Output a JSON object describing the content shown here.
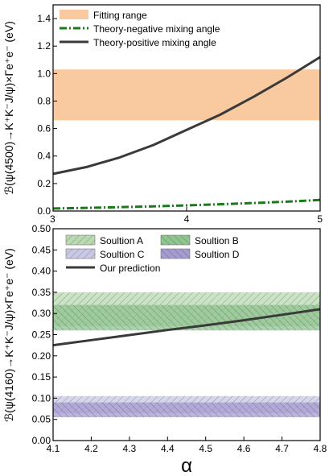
{
  "chart_data": [
    {
      "type": "line",
      "ylabel": "ℬ(ψ(4500)→K⁺K⁻J/ψ)×Γe⁺e⁻ (eV)",
      "xlim": [
        3,
        5
      ],
      "ylim": [
        0,
        1.5
      ],
      "xticks": [
        "3",
        "4",
        "5"
      ],
      "yticks": [
        "0.0",
        "0.2",
        "0.4",
        "0.6",
        "0.8",
        "1.0",
        "1.2",
        "1.4"
      ],
      "legend_position": "top-left",
      "bands": [
        {
          "name": "Fitting range",
          "low": 0.66,
          "high": 1.03,
          "color": "#f9c9a0"
        }
      ],
      "series": [
        {
          "name": "Theory-negative mixing angle",
          "color": "#1a7a1a",
          "style": "dashdot",
          "x": [
            3.0,
            3.25,
            3.5,
            3.75,
            4.0,
            4.25,
            4.5,
            4.75,
            5.0
          ],
          "y": [
            0.018,
            0.023,
            0.028,
            0.034,
            0.041,
            0.049,
            0.058,
            0.068,
            0.08
          ]
        },
        {
          "name": "Theory-positive  mixing angle",
          "color": "#3a3a3a",
          "style": "solid",
          "x": [
            3.0,
            3.25,
            3.5,
            3.75,
            4.0,
            4.25,
            4.5,
            4.75,
            5.0
          ],
          "y": [
            0.27,
            0.32,
            0.39,
            0.48,
            0.59,
            0.7,
            0.83,
            0.97,
            1.12
          ]
        }
      ]
    },
    {
      "type": "line",
      "xlabel": "α",
      "ylabel": "ℬ(ψ(4160)→K⁺K⁻J/ψ)×Γe⁺e⁻ (eV)",
      "xlim": [
        4.1,
        4.8
      ],
      "ylim": [
        0,
        0.5
      ],
      "xticks": [
        "4.1",
        "4.2",
        "4.3",
        "4.4",
        "4.5",
        "4.6",
        "4.7",
        "4.8"
      ],
      "yticks": [
        "0.00",
        "0.05",
        "0.10",
        "0.15",
        "0.20",
        "0.25",
        "0.30",
        "0.35",
        "0.40",
        "0.45",
        "0.50"
      ],
      "legend_position": "top",
      "bands": [
        {
          "name": "Soultion A",
          "low": 0.27,
          "high": 0.35,
          "color": "#b9d9b2",
          "pattern": "diag-right"
        },
        {
          "name": "Soultion B",
          "low": 0.26,
          "high": 0.32,
          "color": "#8fc48f",
          "pattern": "diag-left"
        },
        {
          "name": "Soultion C",
          "low": 0.065,
          "high": 0.105,
          "color": "#c9c9e6",
          "pattern": "diag-right"
        },
        {
          "name": "Soultion D",
          "low": 0.055,
          "high": 0.09,
          "color": "#a69bd0",
          "pattern": "diag-left"
        }
      ],
      "series": [
        {
          "name": "Our prediction",
          "color": "#3a3a3a",
          "style": "solid",
          "x": [
            4.1,
            4.2,
            4.3,
            4.4,
            4.5,
            4.6,
            4.7,
            4.8
          ],
          "y": [
            0.225,
            0.237,
            0.249,
            0.261,
            0.272,
            0.284,
            0.297,
            0.31
          ]
        }
      ]
    }
  ]
}
